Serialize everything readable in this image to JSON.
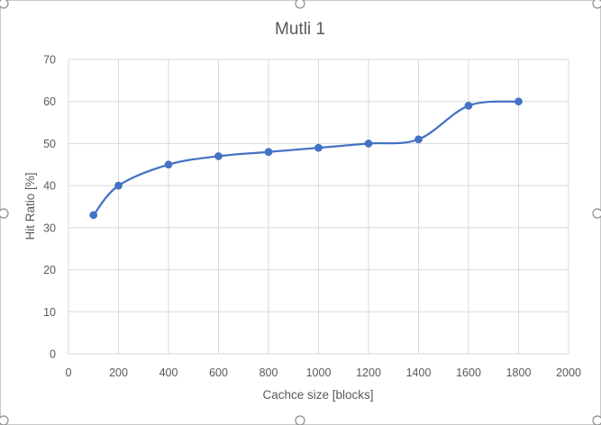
{
  "chart_data": {
    "type": "line",
    "title": "Mutli 1",
    "xlabel": "Cachce size [blocks]",
    "ylabel": "Hit Ratio [%]",
    "xlim": [
      0,
      2000
    ],
    "ylim": [
      0,
      70
    ],
    "x_ticks": [
      "0",
      "200",
      "400",
      "600",
      "800",
      "1000",
      "1200",
      "1400",
      "1600",
      "1800",
      "2000"
    ],
    "y_ticks": [
      "0",
      "10",
      "20",
      "30",
      "40",
      "50",
      "60",
      "70"
    ],
    "grid": true,
    "smooth": true,
    "legend": "none",
    "series": [
      {
        "color": "#4472c4",
        "x": [
          100,
          200,
          400,
          600,
          800,
          1000,
          1200,
          1400,
          1600,
          1800
        ],
        "y": [
          33,
          40,
          45,
          47,
          48,
          49,
          50,
          51,
          59,
          60
        ]
      }
    ]
  }
}
